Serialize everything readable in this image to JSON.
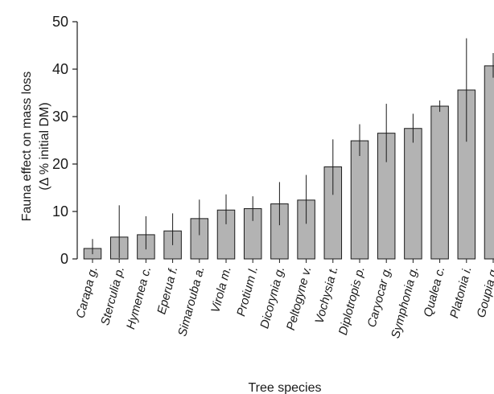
{
  "chart_data": {
    "type": "bar",
    "xlabel": "Tree species",
    "ylabel": "Fauna effect on mass loss",
    "ylabel_line2": "(Δ % initial DM)",
    "ylim": [
      0,
      50
    ],
    "yticks": [
      0,
      10,
      20,
      30,
      40,
      50
    ],
    "categories": [
      "Carapa g.",
      "Sterculia p.",
      "Hymenea c.",
      "Eperua f.",
      "Simarouba a.",
      "Virola m.",
      "Protium l.",
      "Dicorynia g.",
      "Peltogyne v.",
      "Vochysia t.",
      "Diplotropis p.",
      "Caryocar g.",
      "Symphonia g.",
      "Qualea c.",
      "Platonia i.",
      "Goupia g."
    ],
    "values": [
      2.2,
      4.6,
      5.1,
      5.9,
      8.5,
      10.3,
      10.6,
      11.6,
      12.4,
      19.4,
      24.9,
      26.5,
      27.5,
      32.2,
      35.6,
      40.7
    ],
    "error_low": [
      1.0,
      0.2,
      2.0,
      2.9,
      5.0,
      7.3,
      8.0,
      7.1,
      7.4,
      13.5,
      21.7,
      20.4,
      24.5,
      31.0,
      24.7,
      38.2
    ],
    "error_high": [
      4.2,
      11.3,
      9.0,
      9.6,
      12.5,
      13.6,
      13.2,
      16.2,
      17.7,
      25.2,
      28.4,
      32.7,
      30.6,
      33.4,
      46.5,
      43.4
    ],
    "bar_color": "#b3b3b3",
    "grid": false
  }
}
